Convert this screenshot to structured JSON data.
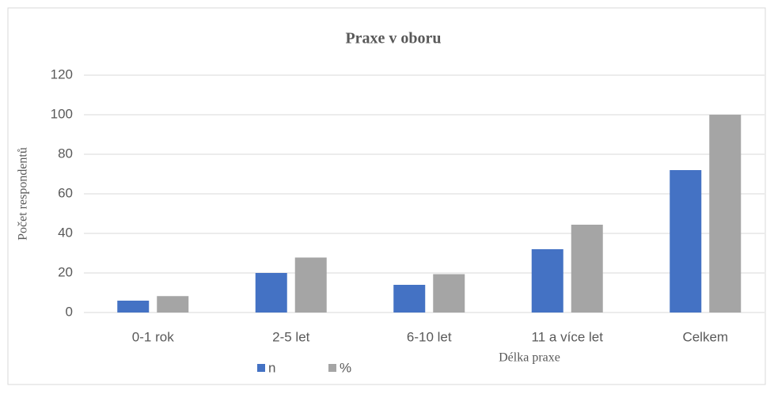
{
  "chart_data": {
    "type": "bar",
    "title": "Praxe v oboru",
    "x_label": "Délka praxe",
    "y_label": "Počet respondentů",
    "categories": [
      "0-1 rok",
      "2-5 let",
      "6-10 let",
      "11 a více let",
      "Celkem"
    ],
    "series": [
      {
        "name": "n",
        "color": "#4472c4",
        "values": [
          6,
          20,
          14,
          32,
          72
        ]
      },
      {
        "name": "%",
        "color": "#a5a5a5",
        "values": [
          8.3,
          27.8,
          19.4,
          44.4,
          100
        ]
      }
    ],
    "ylim": [
      0,
      120
    ],
    "yticks": [
      0,
      20,
      40,
      60,
      80,
      100,
      120
    ],
    "grid": true,
    "legend": "bottom"
  }
}
